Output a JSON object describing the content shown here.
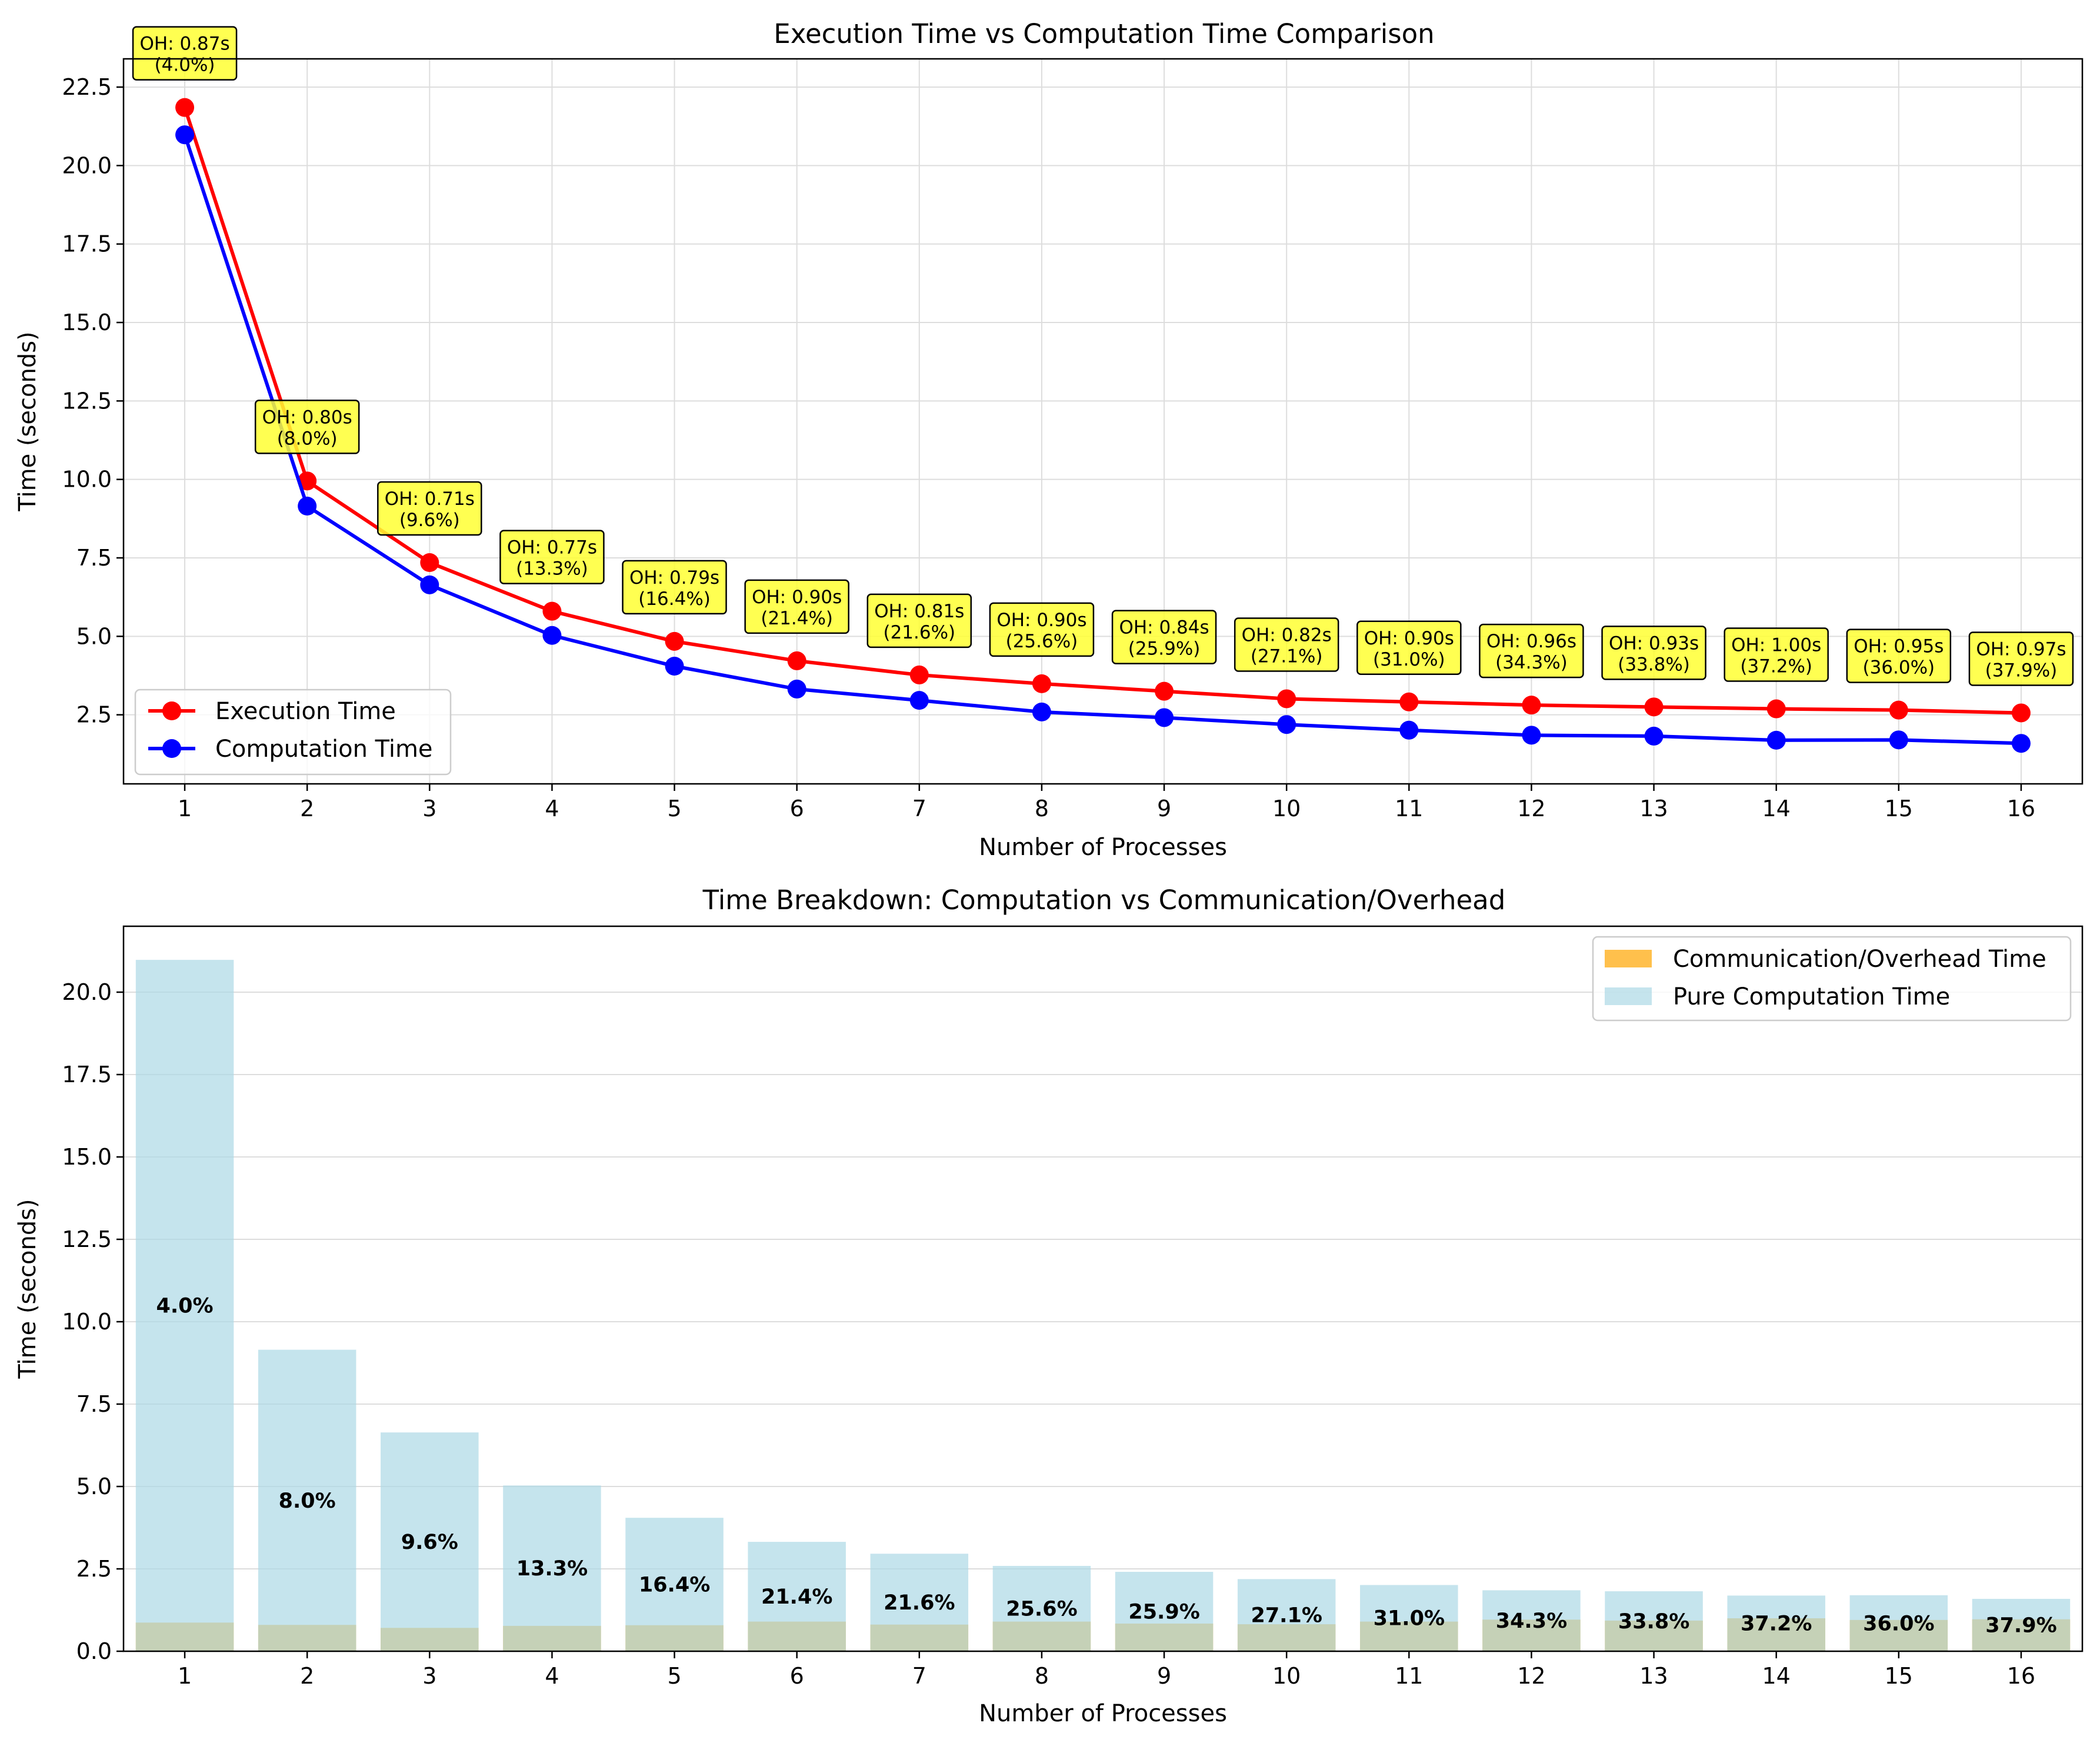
{
  "colors": {
    "execution": "#ff0000",
    "computation": "#0000ff",
    "overhead_bar": "#ffa500",
    "computation_bar": "#add8e6",
    "annotation_fill": "#ffff33",
    "grid": "#dddddd"
  },
  "chart_data": [
    {
      "type": "line",
      "title": "Execution Time vs Computation Time Comparison",
      "xlabel": "Number of Processes",
      "ylabel": "Time (seconds)",
      "x": [
        1,
        2,
        3,
        4,
        5,
        6,
        7,
        8,
        9,
        10,
        11,
        12,
        13,
        14,
        15,
        16
      ],
      "xlim": [
        0.5,
        16.5
      ],
      "ylim": [
        0.3,
        23.4
      ],
      "yticks": [
        2.5,
        5.0,
        7.5,
        10.0,
        12.5,
        15.0,
        17.5,
        20.0,
        22.5
      ],
      "grid": true,
      "legend_position": "lower-left",
      "series": [
        {
          "name": "Execution Time",
          "color": "#ff0000",
          "values": [
            21.85,
            9.95,
            7.35,
            5.8,
            4.84,
            4.22,
            3.77,
            3.49,
            3.25,
            3.01,
            2.91,
            2.81,
            2.75,
            2.69,
            2.65,
            2.56
          ]
        },
        {
          "name": "Computation Time",
          "color": "#0000ff",
          "values": [
            20.98,
            9.15,
            6.64,
            5.03,
            4.05,
            3.32,
            2.96,
            2.59,
            2.41,
            2.19,
            2.01,
            1.85,
            1.82,
            1.69,
            1.7,
            1.59
          ]
        }
      ],
      "annotations": [
        {
          "line1": "OH: 0.87s",
          "line2": "(4.0%)"
        },
        {
          "line1": "OH: 0.80s",
          "line2": "(8.0%)"
        },
        {
          "line1": "OH: 0.71s",
          "line2": "(9.6%)"
        },
        {
          "line1": "OH: 0.77s",
          "line2": "(13.3%)"
        },
        {
          "line1": "OH: 0.79s",
          "line2": "(16.4%)"
        },
        {
          "line1": "OH: 0.90s",
          "line2": "(21.4%)"
        },
        {
          "line1": "OH: 0.81s",
          "line2": "(21.6%)"
        },
        {
          "line1": "OH: 0.90s",
          "line2": "(25.6%)"
        },
        {
          "line1": "OH: 0.84s",
          "line2": "(25.9%)"
        },
        {
          "line1": "OH: 0.82s",
          "line2": "(27.1%)"
        },
        {
          "line1": "OH: 0.90s",
          "line2": "(31.0%)"
        },
        {
          "line1": "OH: 0.96s",
          "line2": "(34.3%)"
        },
        {
          "line1": "OH: 0.93s",
          "line2": "(33.8%)"
        },
        {
          "line1": "OH: 1.00s",
          "line2": "(37.2%)"
        },
        {
          "line1": "OH: 0.95s",
          "line2": "(36.0%)"
        },
        {
          "line1": "OH: 0.97s",
          "line2": "(37.9%)"
        }
      ]
    },
    {
      "type": "bar",
      "title": "Time Breakdown: Computation vs Communication/Overhead",
      "xlabel": "Number of Processes",
      "ylabel": "Time (seconds)",
      "categories": [
        "1",
        "2",
        "3",
        "4",
        "5",
        "6",
        "7",
        "8",
        "9",
        "10",
        "11",
        "12",
        "13",
        "14",
        "15",
        "16"
      ],
      "xlim": [
        0.5,
        16.5
      ],
      "ylim": [
        0,
        22.0
      ],
      "yticks": [
        0.0,
        2.5,
        5.0,
        7.5,
        10.0,
        12.5,
        15.0,
        17.5,
        20.0
      ],
      "grid": true,
      "legend_position": "top-right",
      "series": [
        {
          "name": "Communication/Overhead Time",
          "color": "#ffa500",
          "alpha": 0.7,
          "values": [
            0.87,
            0.8,
            0.71,
            0.77,
            0.79,
            0.9,
            0.81,
            0.9,
            0.84,
            0.82,
            0.9,
            0.96,
            0.93,
            1.0,
            0.95,
            0.97
          ]
        },
        {
          "name": "Pure Computation Time",
          "color": "#add8e6",
          "alpha": 0.7,
          "values": [
            20.98,
            9.15,
            6.64,
            5.03,
            4.05,
            3.32,
            2.96,
            2.59,
            2.41,
            2.19,
            2.01,
            1.85,
            1.82,
            1.69,
            1.7,
            1.59
          ]
        }
      ],
      "data_labels": [
        "4.0%",
        "8.0%",
        "9.6%",
        "13.3%",
        "16.4%",
        "21.4%",
        "21.6%",
        "25.6%",
        "25.9%",
        "27.1%",
        "31.0%",
        "34.3%",
        "33.8%",
        "37.2%",
        "36.0%",
        "37.9%"
      ]
    }
  ]
}
